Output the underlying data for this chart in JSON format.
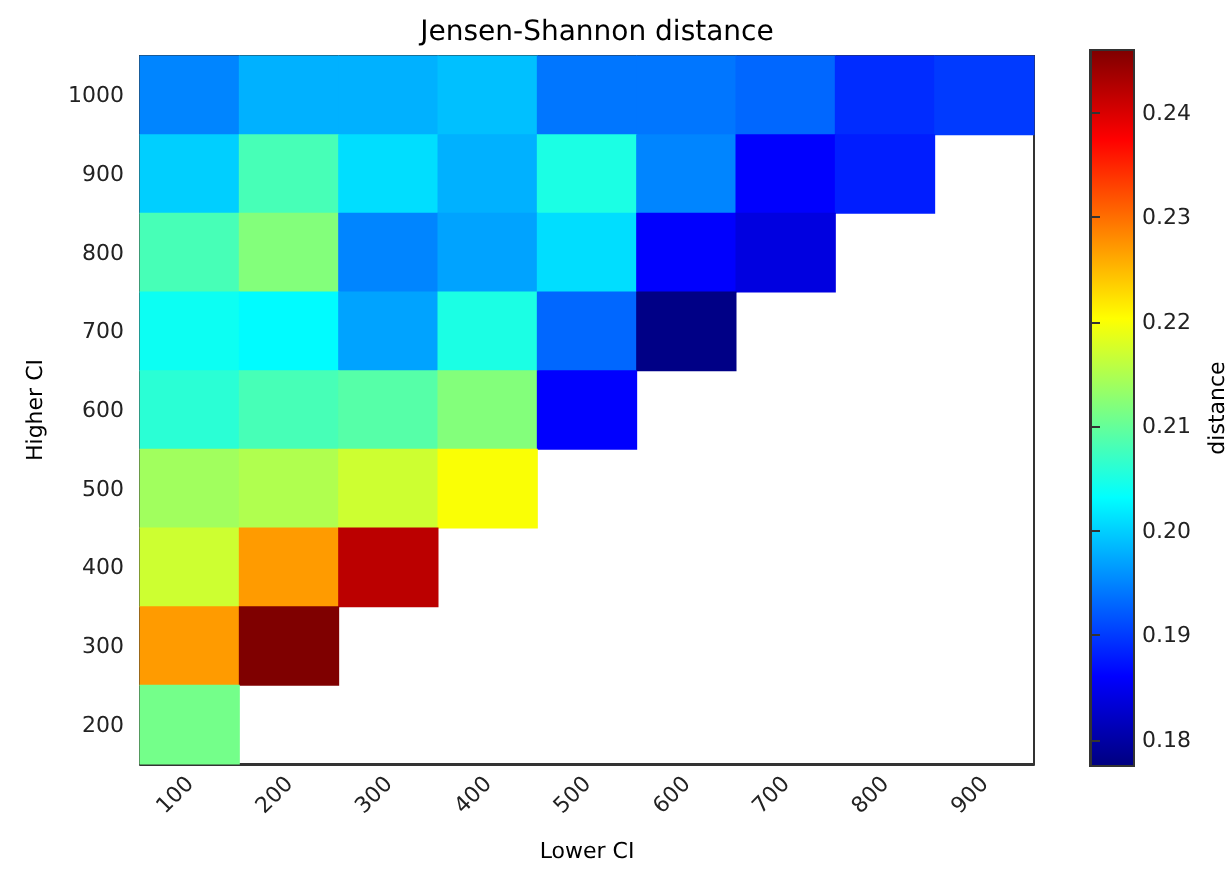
{
  "chart_data": {
    "type": "heatmap",
    "title": "Jensen-Shannon distance",
    "xlabel": "Lower CI",
    "ylabel": "Higher CI",
    "clabel": "distance",
    "categories": [
      "100",
      "200",
      "300",
      "400",
      "500",
      "600",
      "700",
      "800",
      "900"
    ],
    "y_categories": [
      "1000",
      "900",
      "800",
      "700",
      "600",
      "500",
      "400",
      "300",
      "200"
    ],
    "cells": [
      [
        0.195,
        0.198,
        0.198,
        0.199,
        0.194,
        0.194,
        0.193,
        0.189,
        0.19
      ],
      [
        0.2,
        0.208,
        0.201,
        0.198,
        0.205,
        0.195,
        0.186,
        0.188,
        null
      ],
      [
        0.208,
        0.212,
        0.195,
        0.197,
        0.201,
        0.186,
        0.184,
        null,
        null
      ],
      [
        0.204,
        0.203,
        0.197,
        0.205,
        0.193,
        0.178,
        null,
        null,
        null
      ],
      [
        0.206,
        0.208,
        0.209,
        0.212,
        0.186,
        null,
        null,
        null,
        null
      ],
      [
        0.214,
        0.215,
        0.217,
        0.22,
        null,
        null,
        null,
        null,
        null
      ],
      [
        0.217,
        0.227,
        0.242,
        null,
        null,
        null,
        null,
        null,
        null
      ],
      [
        0.227,
        0.246,
        null,
        null,
        null,
        null,
        null,
        null,
        null
      ],
      [
        0.211,
        null,
        null,
        null,
        null,
        null,
        null,
        null,
        null
      ]
    ],
    "clim": [
      0.1775,
      0.246
    ],
    "cticks": [
      0.18,
      0.19,
      {
        "value": 0.2,
        "label": "0.20"
      },
      0.21,
      0.22,
      0.23,
      0.24
    ]
  }
}
